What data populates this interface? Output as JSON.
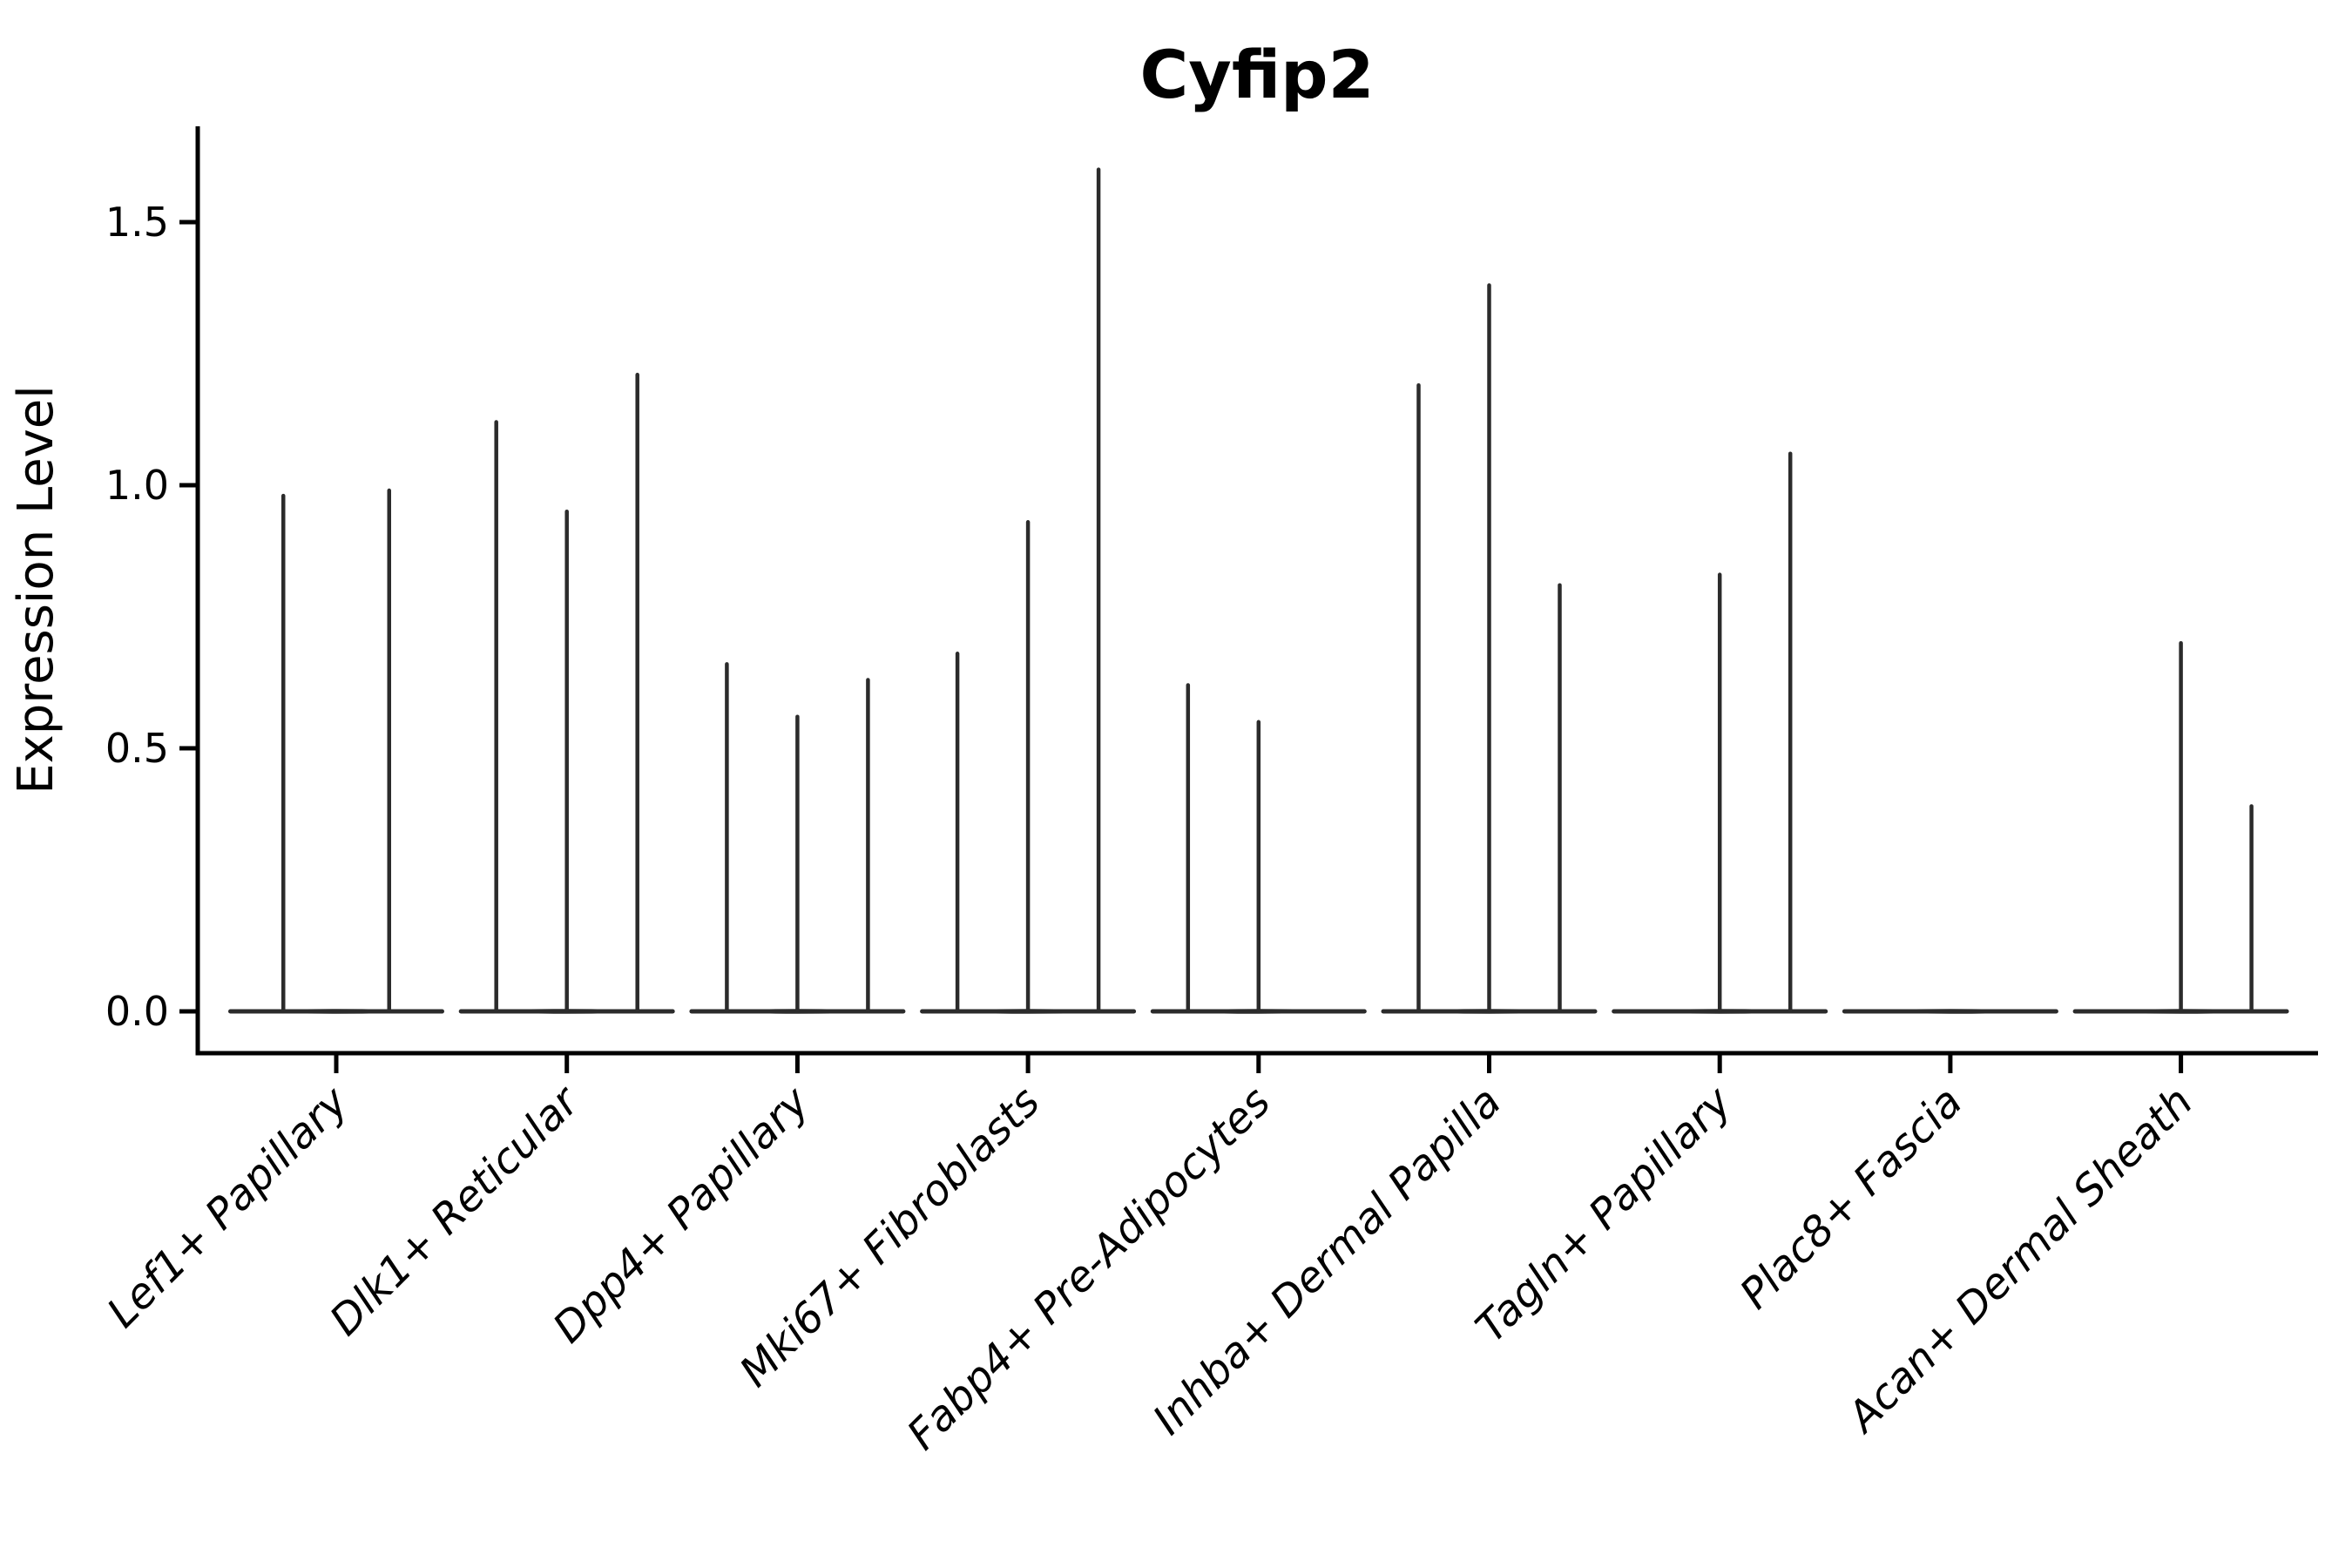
{
  "title": "Cyfip2",
  "y_axis": {
    "label": "Expression Level",
    "ticks": [
      {
        "label": "0.0",
        "value": 0.0
      },
      {
        "label": "0.5",
        "value": 0.5
      },
      {
        "label": "1.0",
        "value": 1.0
      },
      {
        "label": "1.5",
        "value": 1.5
      }
    ]
  },
  "chart_data": {
    "type": "violin",
    "title": "Cyfip2",
    "xlabel": "",
    "ylabel": "Expression Level",
    "ylim": [
      0,
      1.68
    ],
    "yticks": [
      0.0,
      0.5,
      1.0,
      1.5
    ],
    "grid": false,
    "legend_position": "none",
    "categories": [
      "Lef1+ Papillary",
      "Dlk1+ Reticular",
      "Dpp4+ Papillary",
      "Mki67+ Fibroblasts",
      "Fabp4+ Pre-Adipocytes",
      "Inhba+ Dermal Papilla",
      "Tagln+ Papillary",
      "Plac8+ Fascia",
      "Acan+ Dermal Sheath"
    ],
    "series": [
      {
        "category": "Lef1+ Papillary",
        "violin_max_values": [
          0.98,
          0.99
        ]
      },
      {
        "category": "Dlk1+ Reticular",
        "violin_max_values": [
          1.12,
          0.95,
          1.21
        ]
      },
      {
        "category": "Dpp4+ Papillary",
        "violin_max_values": [
          0.66,
          0.56,
          0.63
        ]
      },
      {
        "category": "Mki67+ Fibroblasts",
        "violin_max_values": [
          0.68,
          0.93,
          1.6
        ]
      },
      {
        "category": "Fabp4+ Pre-Adipocytes",
        "violin_max_values": [
          0.62,
          0.55,
          0
        ]
      },
      {
        "category": "Inhba+ Dermal Papilla",
        "violin_max_values": [
          1.19,
          1.38,
          0.81
        ]
      },
      {
        "category": "Tagln+ Papillary",
        "violin_max_values": [
          0,
          0.83,
          1.06
        ]
      },
      {
        "category": "Plac8+ Fascia",
        "violin_max_values": [
          0,
          0,
          0
        ]
      },
      {
        "category": "Acan+ Dermal Sheath",
        "violin_max_values": [
          0,
          0.7,
          0.39
        ]
      }
    ]
  },
  "colors": {
    "text": "#000000",
    "axis": "#000000",
    "violin": "#2b2b2b",
    "background": "#ffffff"
  }
}
